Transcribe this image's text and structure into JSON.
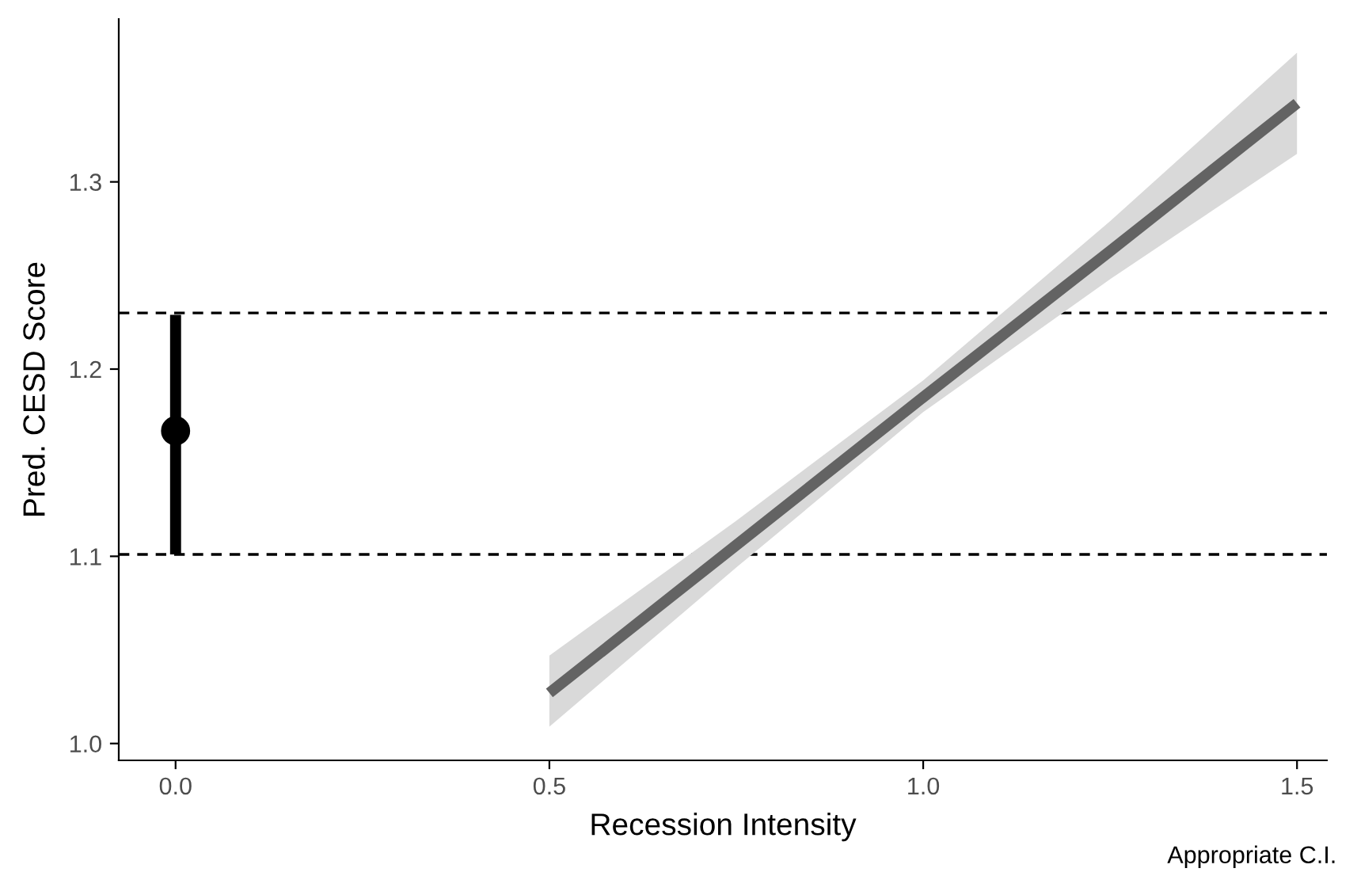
{
  "chart_data": {
    "type": "line",
    "xlabel": "Recession Intensity",
    "ylabel": "Pred. CESD Score",
    "annotations": [
      "Appropriate C.I."
    ],
    "xlim": [
      -0.076,
      1.54
    ],
    "ylim": [
      0.991,
      1.387
    ],
    "xticks": [
      {
        "value": 0,
        "label": "0.0"
      },
      {
        "value": 0.5,
        "label": "0.5"
      },
      {
        "value": 1,
        "label": "1.0"
      },
      {
        "value": 1.5,
        "label": "1.5"
      }
    ],
    "yticks": [
      {
        "value": 1.0,
        "label": "1.0"
      },
      {
        "value": 1.1,
        "label": "1.1"
      },
      {
        "value": 1.2,
        "label": "1.2"
      },
      {
        "value": 1.3,
        "label": "1.3"
      }
    ],
    "grid": false,
    "legend": false,
    "ref_lines": [
      {
        "axis": "y",
        "value": 1.23,
        "line_style": "dashed",
        "color": "#000000"
      },
      {
        "axis": "y",
        "value": 1.101,
        "line_style": "dashed",
        "color": "#000000"
      }
    ],
    "series": [
      {
        "type": "scatter",
        "color": "#000000",
        "marker": "circle",
        "x": [
          0
        ],
        "values": [
          1.167
        ],
        "errors": [
          [
            1.101,
            1.229
          ]
        ]
      },
      {
        "color": "#636363",
        "x": [
          0.5,
          0.75,
          1.0,
          1.25,
          1.5
        ],
        "values": [
          1.027,
          1.106,
          1.185,
          1.263,
          1.342
        ],
        "lower": [
          1.009,
          1.094,
          1.177,
          1.248,
          1.315
        ],
        "upper": [
          1.047,
          1.119,
          1.194,
          1.279,
          1.369
        ]
      }
    ]
  }
}
